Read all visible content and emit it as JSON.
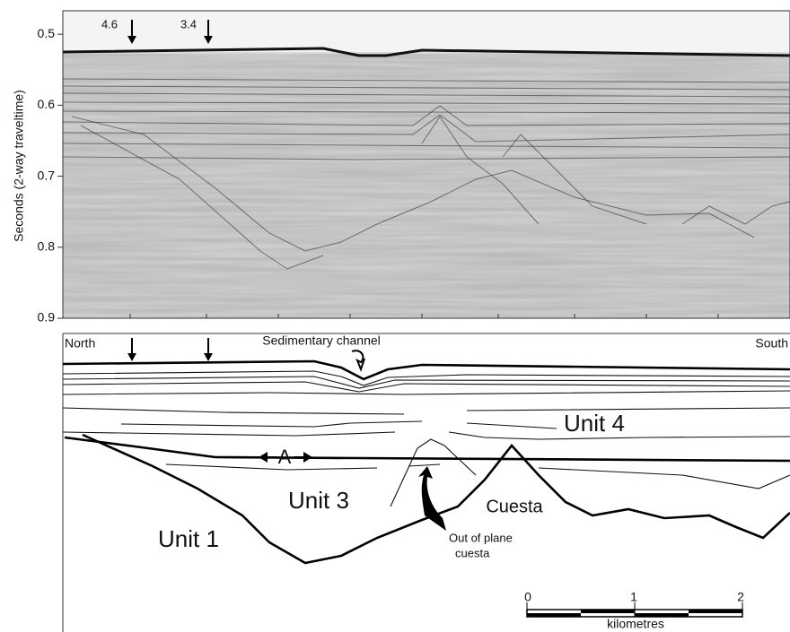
{
  "seismic_panel": {
    "y_axis_label": "Seconds (2-way traveltime)",
    "ylim": [
      0.467,
      0.9
    ],
    "yticks": [
      0.5,
      0.6,
      0.7,
      0.8,
      0.9
    ],
    "markers": [
      "4.6",
      "3.4"
    ]
  },
  "interpretation_panel": {
    "north": "North",
    "south": "South",
    "channel": "Sedimentary channel",
    "unit_4": "Unit 4",
    "reflector_a": "A",
    "unit_3": "Unit 3",
    "unit_1": "Unit 1",
    "cuesta": "Cuesta",
    "out_of_plane": [
      "Out of plane",
      "cuesta"
    ]
  },
  "scale_bar": {
    "ticks": [
      0,
      1,
      2
    ],
    "unit": "kilometres"
  }
}
